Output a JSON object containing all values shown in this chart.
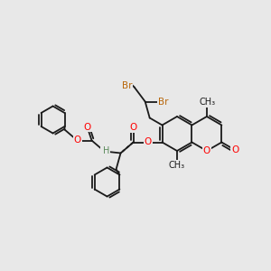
{
  "bg_color": "#e8e8e8",
  "bond_color": "#1a1a1a",
  "atom_colors": {
    "O": "#ff0000",
    "N": "#0000cd",
    "Br": "#b8660a",
    "C": "#1a1a1a",
    "H": "#5a8a5a"
  },
  "font_size": 7.5,
  "lw": 1.3
}
